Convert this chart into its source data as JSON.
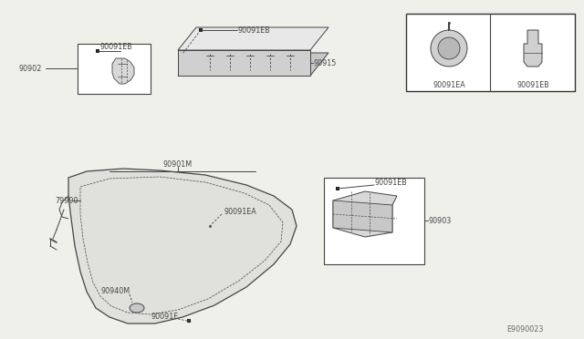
{
  "bg_color": "#f0f0eb",
  "line_color": "#444444",
  "text_color": "#444444",
  "fig_width": 6.4,
  "fig_height": 3.72,
  "watermark": "E9090023",
  "labels": {
    "90091EB_rail_top": "90091EB",
    "90915": "90915",
    "90902": "90902",
    "90091EB_left": "90091EB",
    "90901M": "90901M",
    "79990": "79990",
    "90091EA_mid": "90091EA",
    "90940M": "90940M",
    "90091E": "90091E",
    "90091EB_right": "90091EB",
    "90903": "90903",
    "90091EA_box": "90091EA",
    "90091EB_box": "90091EB"
  }
}
